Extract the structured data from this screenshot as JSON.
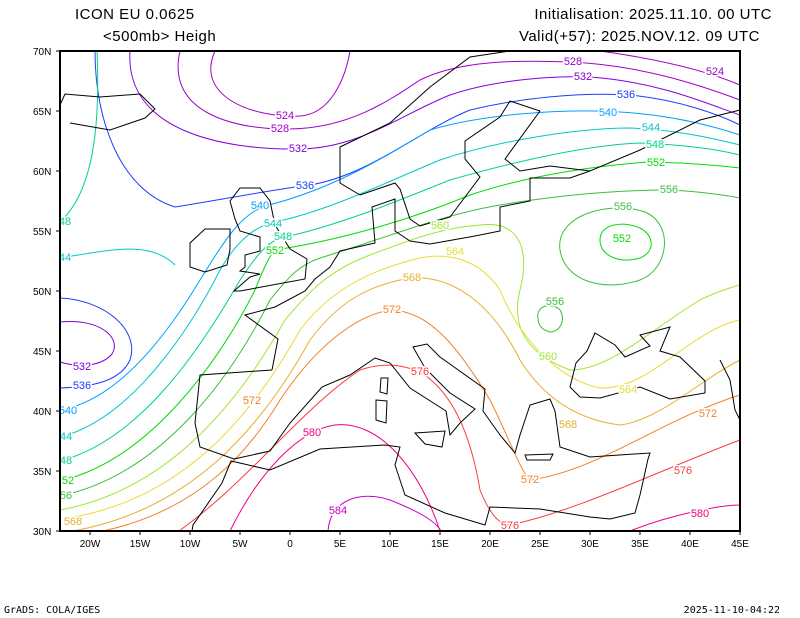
{
  "header": {
    "model": "ICON EU   0.0625",
    "field": "<500mb> Heigh",
    "init": "Initialisation: 2025.11.10. 00 UTC",
    "valid": "Valid(+57): 2025.NOV.12. 09 UTC"
  },
  "axes": {
    "lat_ticks": [
      "70N",
      "65N",
      "60N",
      "55N",
      "50N",
      "45N",
      "40N",
      "35N",
      "30N"
    ],
    "lon_ticks": [
      "20W",
      "15W",
      "10W",
      "5W",
      "0",
      "5E",
      "10E",
      "15E",
      "20E",
      "25E",
      "30E",
      "35E",
      "40E",
      "45E"
    ]
  },
  "contours": {
    "variable": "500 hPa geopotential height (dam)",
    "labels": [
      "528",
      "524",
      "532",
      "536",
      "540",
      "544",
      "548",
      "552",
      "556",
      "524",
      "528",
      "532",
      "536",
      "540",
      "544",
      "548",
      "552",
      "560",
      "564",
      "556",
      "552",
      "568",
      "556",
      "572",
      "560",
      "532",
      "536",
      "576",
      "564",
      "572",
      "540",
      "572",
      "568",
      "580",
      "44",
      "48",
      "576",
      "572",
      "52",
      "56",
      "584",
      "580",
      "568",
      "576",
      "48",
      "44"
    ],
    "colors": {
      "524": "#a000c8",
      "528": "#a000c8",
      "532": "#8200dc",
      "536": "#1e3cff",
      "540": "#00a0ff",
      "544": "#00c8c8",
      "548": "#00d28c",
      "552": "#00dc00",
      "556": "#3cbe3c",
      "560": "#a0e632",
      "564": "#e6dc32",
      "568": "#e6af2d",
      "572": "#f08228",
      "576": "#fa3c3c",
      "580": "#f00082",
      "584": "#c800c8"
    }
  },
  "footer": {
    "credit": "GrADS: COLA/IGES",
    "timestamp": "2025-11-10-04:22"
  }
}
